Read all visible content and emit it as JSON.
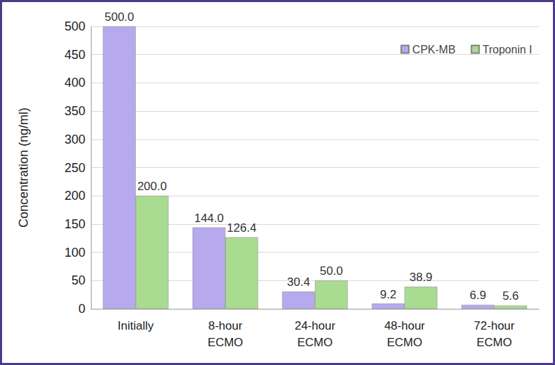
{
  "chart_data": {
    "type": "bar",
    "categories": [
      "Initially",
      "8-hour\nECMO",
      "24-hour\nECMO",
      "48-hour\nECMO",
      "72-hour\nECMO"
    ],
    "series": [
      {
        "name": "CPK-MB",
        "color": "#b7a9ee",
        "values": [
          500,
          144,
          30.4,
          9.2,
          6.9
        ],
        "value_labels": [
          "500.0",
          "144.0",
          "30.4",
          "9.2",
          "6.9"
        ]
      },
      {
        "name": "Troponin I",
        "color": "#a9dc90",
        "values": [
          200,
          126.4,
          50,
          38.9,
          5.6
        ],
        "value_labels": [
          "200.0",
          "126.4",
          "50.0",
          "38.9",
          "5.6"
        ]
      }
    ],
    "y_label": "Concentration (ng/ml)",
    "ylim": [
      0,
      500
    ],
    "yticks": [
      0,
      50,
      100,
      150,
      200,
      250,
      300,
      350,
      400,
      450,
      500
    ],
    "grid": true,
    "legend": "upper right",
    "data_labels": true
  }
}
